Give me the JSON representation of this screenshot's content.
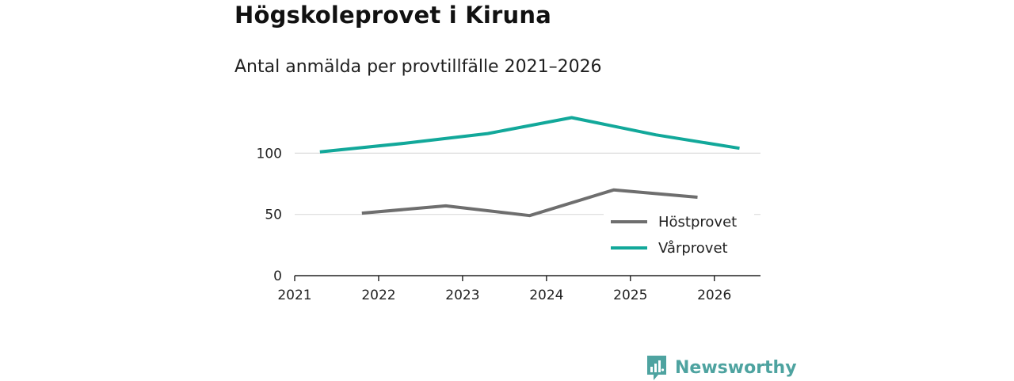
{
  "title": "Högskoleprovet i Kiruna",
  "subtitle": "Antal anmälda per provtillfälle 2021–2026",
  "brand": {
    "name": "Newsworthy",
    "icon": "bar-chart-bubble-icon",
    "color": "#4ea3a0"
  },
  "chart_data": {
    "type": "line",
    "title": "Högskoleprovet i Kiruna",
    "subtitle": "Antal anmälda per provtillfälle 2021–2026",
    "xlabel": "",
    "ylabel": "",
    "xlim": [
      2021,
      2026.55
    ],
    "ylim": [
      0,
      130
    ],
    "x_ticks": [
      "2021",
      "2022",
      "2023",
      "2024",
      "2025",
      "2026"
    ],
    "y_ticks": [
      0,
      50,
      100
    ],
    "grid": true,
    "legend_position": "bottom-right",
    "series": [
      {
        "name": "Höstprovet",
        "color": "#6e6e6e",
        "points": [
          [
            2021.8,
            51
          ],
          [
            2022.8,
            57
          ],
          [
            2023.8,
            49
          ],
          [
            2024.8,
            70
          ],
          [
            2025.8,
            64
          ]
        ]
      },
      {
        "name": "Vårprovet",
        "color": "#12a89a",
        "points": [
          [
            2021.3,
            101
          ],
          [
            2022.3,
            108
          ],
          [
            2023.3,
            116
          ],
          [
            2024.3,
            129
          ],
          [
            2025.3,
            115
          ],
          [
            2026.3,
            104
          ]
        ]
      }
    ]
  }
}
